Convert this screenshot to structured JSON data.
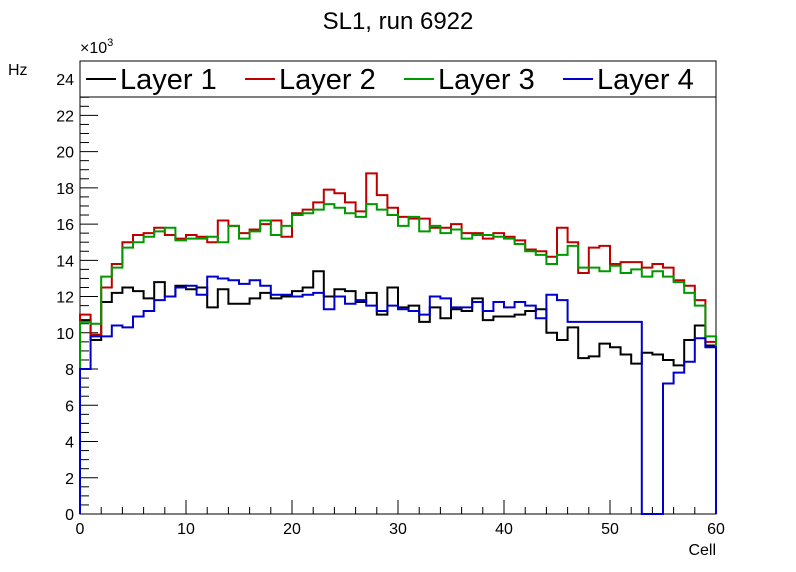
{
  "chart_data": {
    "type": "line",
    "title": "SL1, run 6922",
    "xlabel": "Cell",
    "ylabel": "Hz",
    "y_multiplier_label": "×10",
    "y_multiplier_exponent": "3",
    "xlim": [
      0,
      60
    ],
    "ylim": [
      0,
      25
    ],
    "x_ticks": [
      0,
      10,
      20,
      30,
      40,
      50,
      60
    ],
    "y_ticks": [
      0,
      2,
      4,
      6,
      8,
      10,
      12,
      14,
      16,
      18,
      20,
      22,
      24
    ],
    "bin_width": 1,
    "grid": false,
    "legend_position": "top",
    "series": [
      {
        "name": "Layer 1",
        "color": "#000000",
        "values": [
          10.7,
          9.6,
          11.7,
          12.2,
          12.5,
          12.3,
          11.9,
          12.8,
          12.0,
          12.6,
          12.4,
          12.5,
          11.4,
          12.4,
          11.6,
          11.6,
          11.9,
          12.2,
          11.9,
          12.0,
          12.3,
          12.5,
          13.4,
          12.0,
          12.4,
          12.3,
          11.7,
          12.2,
          11.0,
          12.5,
          11.4,
          11.5,
          10.6,
          11.4,
          10.8,
          11.3,
          11.2,
          11.9,
          10.7,
          10.9,
          10.9,
          11.0,
          11.2,
          11.3,
          10.0,
          9.6,
          10.3,
          8.6,
          8.7,
          9.4,
          9.2,
          8.8,
          8.3,
          8.9,
          8.8,
          8.5,
          8.2,
          9.6,
          10.4,
          9.3
        ]
      },
      {
        "name": "Layer 2",
        "color": "#c00000",
        "values": [
          11.0,
          9.9,
          12.5,
          13.8,
          15.0,
          15.4,
          15.5,
          15.8,
          15.4,
          15.2,
          15.4,
          15.3,
          15.0,
          16.2,
          15.9,
          15.5,
          15.7,
          16.0,
          16.2,
          15.3,
          16.6,
          16.8,
          17.2,
          17.9,
          17.7,
          17.2,
          16.7,
          18.8,
          17.6,
          16.9,
          16.4,
          16.3,
          16.3,
          15.8,
          15.8,
          16.0,
          15.5,
          15.5,
          15.2,
          15.5,
          15.3,
          15.1,
          14.6,
          14.5,
          14.2,
          15.8,
          15.0,
          13.3,
          14.7,
          14.8,
          13.8,
          13.9,
          13.9,
          13.6,
          13.8,
          13.6,
          12.9,
          12.6,
          11.8,
          9.5
        ]
      },
      {
        "name": "Layer 3",
        "color": "#009900",
        "values": [
          10.6,
          10.5,
          13.1,
          13.6,
          14.7,
          15.0,
          15.3,
          15.6,
          15.8,
          15.1,
          15.2,
          15.2,
          15.3,
          15.0,
          15.9,
          15.2,
          15.6,
          16.2,
          15.4,
          15.9,
          16.5,
          16.6,
          16.8,
          17.1,
          16.9,
          16.6,
          16.4,
          17.1,
          16.8,
          16.5,
          15.9,
          16.4,
          15.6,
          15.9,
          15.5,
          15.7,
          15.2,
          15.4,
          15.4,
          15.3,
          15.2,
          14.9,
          14.5,
          14.3,
          13.8,
          14.3,
          14.8,
          13.6,
          13.6,
          13.4,
          13.7,
          13.3,
          13.5,
          13.1,
          13.4,
          13.1,
          12.8,
          12.2,
          11.5,
          9.8
        ]
      },
      {
        "name": "Layer 4",
        "color": "#0000cc",
        "values": [
          8.0,
          9.8,
          9.8,
          10.4,
          10.3,
          10.9,
          11.2,
          11.8,
          12.0,
          12.5,
          12.6,
          12.1,
          13.1,
          13.0,
          12.9,
          12.7,
          12.9,
          12.6,
          12.1,
          12.1,
          12.0,
          12.1,
          12.2,
          11.3,
          12.0,
          11.6,
          11.8,
          11.5,
          11.2,
          11.5,
          11.3,
          11.2,
          11.0,
          12.0,
          11.9,
          11.4,
          11.4,
          11.7,
          11.2,
          11.7,
          11.4,
          11.7,
          11.5,
          10.8,
          12.1,
          11.8,
          10.6,
          10.6,
          10.6,
          10.6,
          10.6,
          10.6,
          10.6,
          0.0,
          0.0,
          7.2,
          7.8,
          8.4,
          9.7,
          9.2
        ]
      }
    ]
  }
}
